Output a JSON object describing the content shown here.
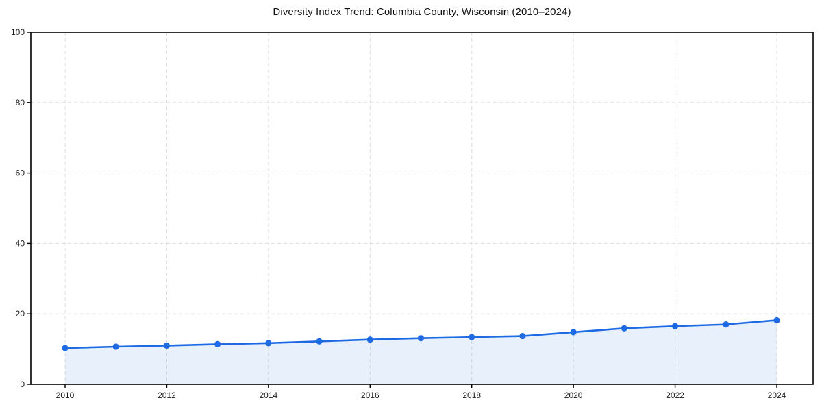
{
  "chart_data": {
    "type": "line",
    "title": "Diversity Index Trend: Columbia County, Wisconsin (2010–2024)",
    "x": [
      2010,
      2011,
      2012,
      2013,
      2014,
      2015,
      2016,
      2017,
      2018,
      2019,
      2020,
      2021,
      2022,
      2023,
      2024
    ],
    "series": [
      {
        "name": "Diversity Index",
        "values": [
          10.3,
          10.7,
          11.0,
          11.4,
          11.7,
          12.2,
          12.7,
          13.1,
          13.4,
          13.7,
          14.8,
          15.9,
          16.5,
          17.0,
          18.2
        ]
      }
    ],
    "xlabel": "",
    "ylabel": "",
    "xlim": [
      2009.3,
      2024.7
    ],
    "ylim": [
      0,
      100
    ],
    "xticks": [
      2010,
      2012,
      2014,
      2016,
      2018,
      2020,
      2022,
      2024
    ],
    "yticks": [
      0,
      20,
      40,
      60,
      80,
      100
    ],
    "grid": "dashed",
    "legend": "none",
    "area_fill": true,
    "marker": "circle",
    "colors": {
      "line": "#1d6ae3",
      "marker": "#1d6ae3",
      "fill": "rgba(30,106,225,0.10)",
      "grid": "#dedede",
      "spine": "#000000",
      "title_text": "#111111",
      "tick_text": "#1a1a1a",
      "background": "#ffffff"
    }
  }
}
